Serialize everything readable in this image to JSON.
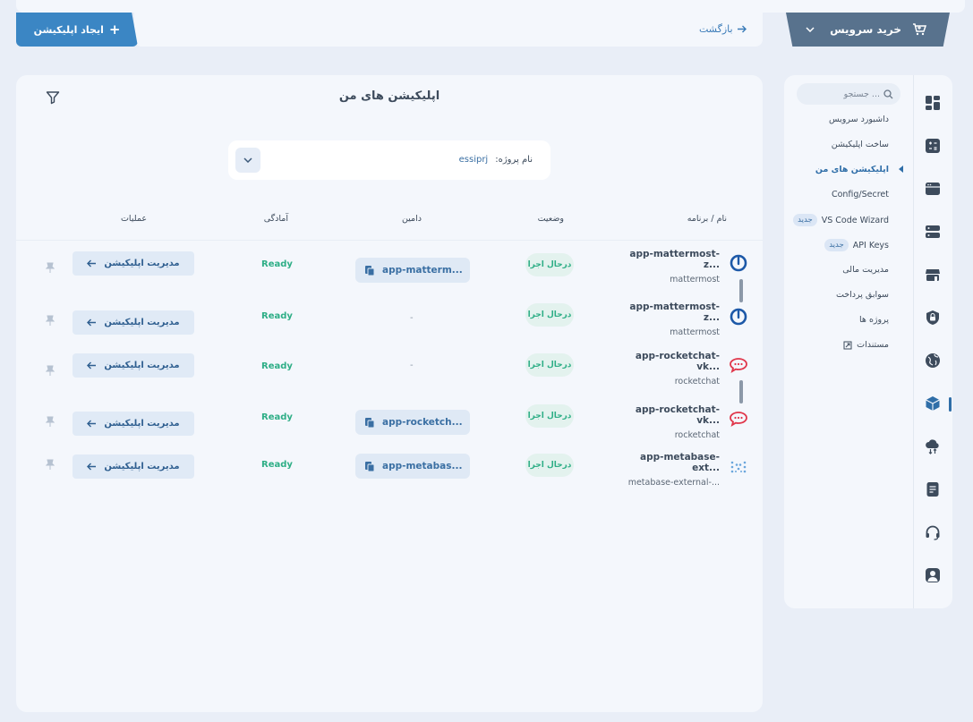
{
  "header": {
    "buy_service_label": "خرید سرویس",
    "back_label": "بازگشت",
    "create_app_label": "ایجاد اپلیکیشن"
  },
  "main": {
    "title": "اپلیکیشن های من",
    "project_label": "نام پروژه:",
    "project_value": "essiprj",
    "columns": {
      "name": "نام / برنامه",
      "status": "وضعیت",
      "domain": "دامین",
      "readiness": "آمادگی",
      "actions": "عملیات"
    },
    "rows": [
      {
        "name": "app-mattermost-z...",
        "app": "mattermost",
        "icon": "mattermost-icon",
        "status": "درحال اجرا",
        "domain": "app-matterm...",
        "readiness": "Ready",
        "action": "مدیریت اپلیکیشن"
      },
      {
        "name": "app-mattermost-z...",
        "app": "mattermost",
        "icon": "mattermost-icon",
        "status": "درحال اجرا",
        "domain": "-",
        "readiness": "Ready",
        "action": "مدیریت اپلیکیشن"
      },
      {
        "name": "app-rocketchat-vk...",
        "app": "rocketchat",
        "icon": "rocketchat-icon",
        "status": "درحال اجرا",
        "domain": "-",
        "readiness": "Ready",
        "action": "مدیریت اپلیکیشن"
      },
      {
        "name": "app-rocketchat-vk...",
        "app": "rocketchat",
        "icon": "rocketchat-icon",
        "status": "درحال اجرا",
        "domain": "app-rocketch...",
        "readiness": "Ready",
        "action": "مدیریت اپلیکیشن"
      },
      {
        "name": "app-metabase-ext...",
        "app": "metabase-external-...",
        "icon": "metabase-icon",
        "status": "درحال اجرا",
        "domain": "app-metabas...",
        "readiness": "Ready",
        "action": "مدیریت اپلیکیشن"
      }
    ]
  },
  "sidebar": {
    "search_placeholder": "جستجو ...",
    "items": [
      {
        "label": "داشبورد سرویس"
      },
      {
        "label": "ساخت اپلیکیشن"
      },
      {
        "label": "اپلیکیشن های من"
      },
      {
        "label": "Config/Secret"
      },
      {
        "label": "VS Code Wizard",
        "badge": "جدید"
      },
      {
        "label": "API Keys",
        "badge": "جدید"
      },
      {
        "label": "مدیریت مالی"
      },
      {
        "label": "سوابق پرداخت"
      },
      {
        "label": "پروژه ها"
      },
      {
        "label": "مستندات"
      }
    ]
  },
  "colors": {
    "accent": "#2f6ea8",
    "ready": "#2eae86",
    "buy_button": "#58728d",
    "create_button": "#3b86c4"
  }
}
